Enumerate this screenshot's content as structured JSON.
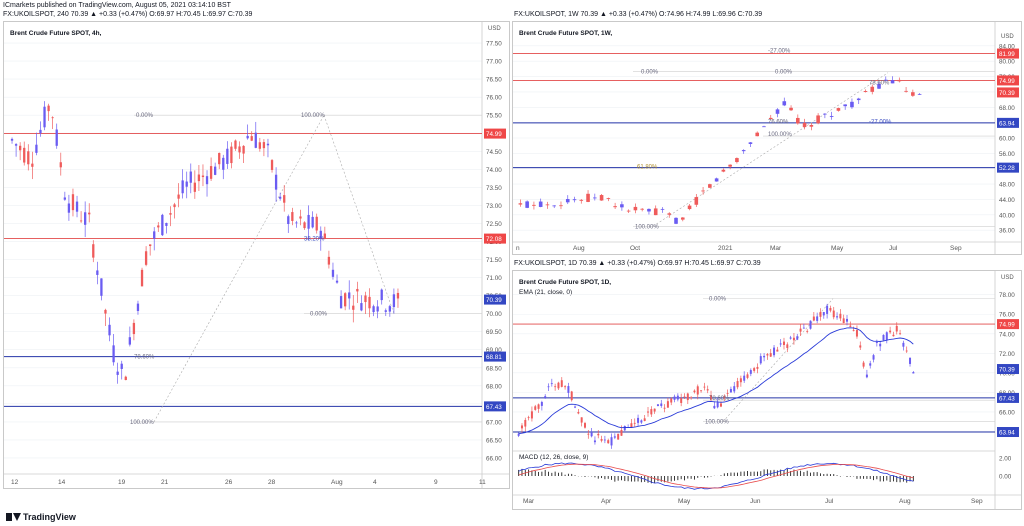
{
  "header": {
    "line1": "ICmarkets published on TradingView.com, August 05, 2021 03:14:10 BST",
    "line2": "FX:UKOILSPOT, 240  70.39 ▲ +0.33 (+0.47%) O:69.97 H:70.45 L:69.97 C:70.39"
  },
  "colors": {
    "up": "#6a5cf2",
    "down": "#ef5b5b",
    "red_line": "#e24a4a",
    "blue_line": "#2434a8",
    "grid": "#eef0f4",
    "label_red": "#ef4747",
    "label_blue": "#3347c3"
  },
  "panels": {
    "left": {
      "name": "Brent Crude Future SPOT, 4h,",
      "currency": "USD",
      "y_ticks": [
        "77.50",
        "77.00",
        "76.50",
        "76.00",
        "75.50",
        "75.00",
        "74.50",
        "74.00",
        "73.50",
        "73.00",
        "72.50",
        "72.00",
        "71.50",
        "71.00",
        "70.50",
        "70.00",
        "69.50",
        "69.00",
        "68.50",
        "68.00",
        "67.50",
        "67.00",
        "66.50",
        "66.00"
      ],
      "x_ticks": [
        "12",
        "14",
        "19",
        "21",
        "26",
        "28",
        "Aug",
        "4",
        "9",
        "11"
      ],
      "price_labels": [
        {
          "text": "74.99",
          "kind": "red"
        },
        {
          "text": "72.08",
          "kind": "red"
        },
        {
          "text": "70.39",
          "kind": "blue"
        },
        {
          "text": "68.81",
          "kind": "blue"
        },
        {
          "text": "67.43",
          "kind": "blue"
        }
      ],
      "fib_labels": [
        "0.00%",
        "100.00%",
        "38.20%",
        "0.00%",
        "78.60%",
        "100.00%"
      ]
    },
    "weekly": {
      "header": "FX:UKOILSPOT, 1W  70.39 ▲ +0.33 (+0.47%) O:74.96 H:74.99 L:69.96 C:70.39",
      "name": "Brent Crude Future SPOT, 1W,",
      "currency": "USD",
      "y_ticks": [
        "84.00",
        "80.00",
        "76.00",
        "72.00",
        "68.00",
        "64.00",
        "60.00",
        "56.00",
        "52.00",
        "48.00",
        "44.00",
        "40.00",
        "36.00"
      ],
      "x_ticks": [
        "n",
        "Aug",
        "Oct",
        "2021",
        "Mar",
        "May",
        "Jul",
        "Sep"
      ],
      "price_labels": [
        {
          "text": "81.99",
          "kind": "red"
        },
        {
          "text": "74.99",
          "kind": "red"
        },
        {
          "text": "70.39",
          "kind": "red"
        },
        {
          "text": "63.94",
          "kind": "blue"
        },
        {
          "text": "52.28",
          "kind": "blue"
        }
      ],
      "fib_labels": [
        "-27.00%",
        "0.00%",
        "0.00%",
        "78.60%",
        "76.60%",
        "-27.00%",
        "100.00%",
        "61.80%",
        "100.00%"
      ]
    },
    "daily": {
      "header": "FX:UKOILSPOT, 1D  70.39 ▲ +0.33 (+0.47%) O:69.97 H:70.45 L:69.97 C:70.39",
      "name": "Brent Crude Future SPOT, 1D,",
      "ema": "EMA (21, close, 0)",
      "macd": "MACD (12, 26, close, 9)",
      "currency": "USD",
      "y_ticks": [
        "78.00",
        "76.00",
        "74.00",
        "72.00",
        "70.00",
        "68.00",
        "66.00",
        "64.00"
      ],
      "macd_ticks": [
        "2.00",
        "0.00"
      ],
      "x_ticks": [
        "Mar",
        "Apr",
        "May",
        "Jun",
        "Jul",
        "Aug",
        "Sep"
      ],
      "price_labels": [
        {
          "text": "74.99",
          "kind": "red"
        },
        {
          "text": "70.39",
          "kind": "blue"
        },
        {
          "text": "67.43",
          "kind": "blue"
        },
        {
          "text": "63.94",
          "kind": "blue"
        }
      ],
      "fib_labels": [
        "0.00%",
        "78.60%",
        "100.00%"
      ]
    }
  },
  "branding": "TradingView"
}
